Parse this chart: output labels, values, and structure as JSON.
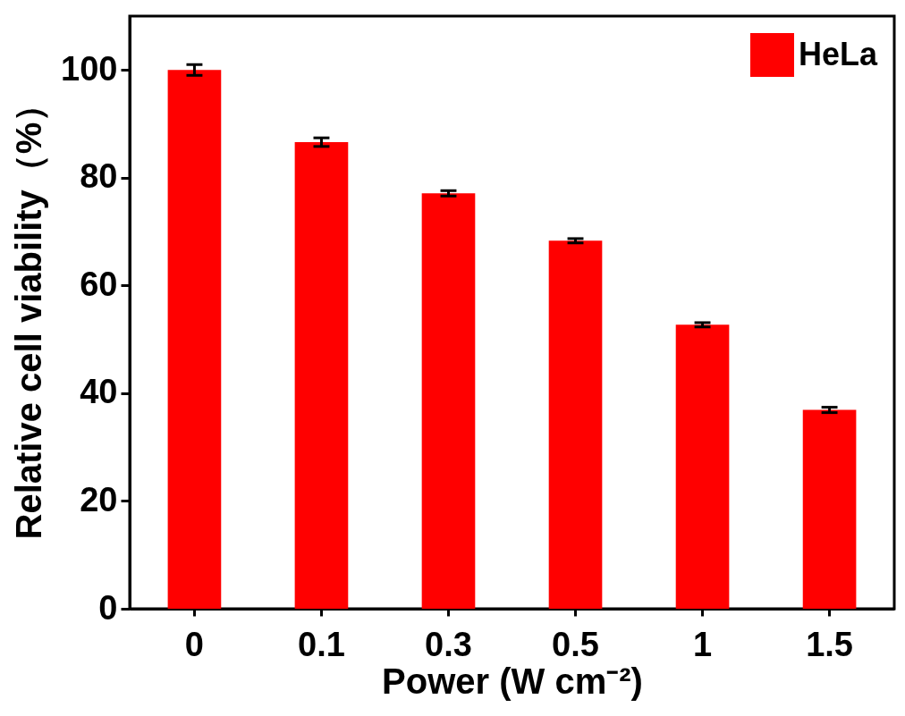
{
  "chart_data": {
    "type": "bar",
    "xlabel": "Power (W cm⁻²)",
    "ylabel": "Relative cell viability（%）",
    "categories": [
      "0",
      "0.1",
      "0.3",
      "0.5",
      "1",
      "1.5"
    ],
    "series": [
      {
        "name": "HeLa",
        "color": "#ff0000",
        "values": [
          100,
          86.6,
          77.1,
          68.3,
          52.7,
          36.9
        ],
        "errors": [
          1,
          0.8,
          0.5,
          0.4,
          0.4,
          0.5
        ]
      }
    ],
    "ylim": [
      0,
      110
    ],
    "yticks": [
      0,
      20,
      40,
      60,
      80,
      100
    ],
    "grid": false,
    "legend": "top right"
  }
}
